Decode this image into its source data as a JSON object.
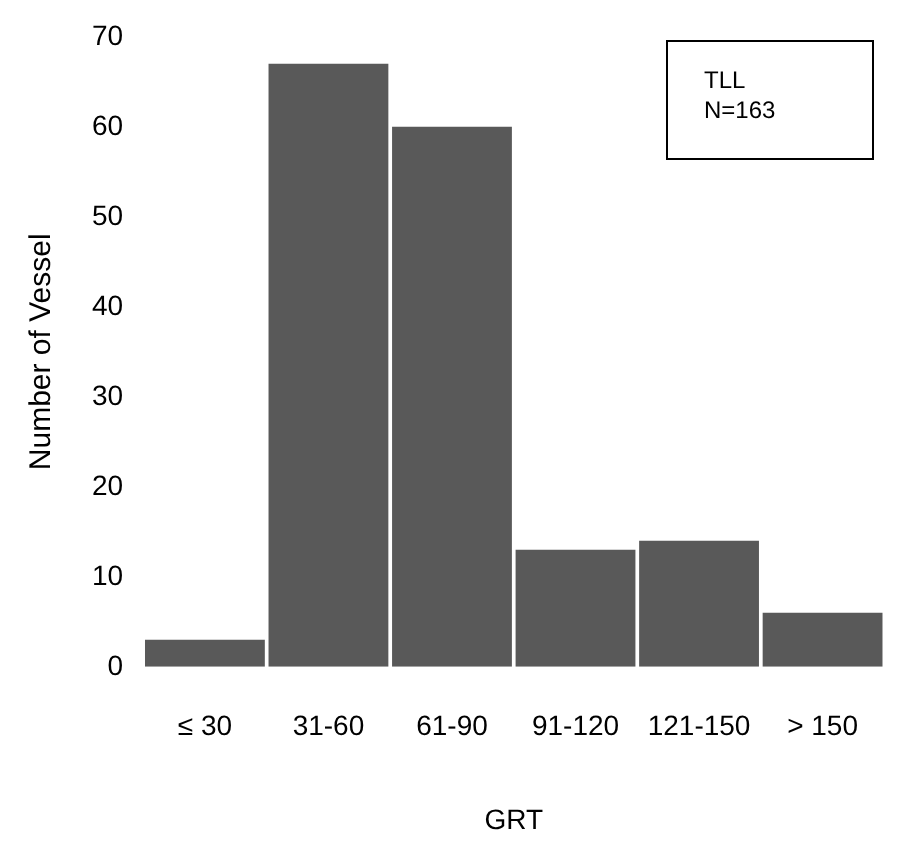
{
  "chart_data": {
    "type": "bar",
    "xlabel": "GRT",
    "ylabel": "Number of Vessel",
    "categories": [
      "≤ 30",
      "31-60",
      "61-90",
      "91-120",
      "121-150",
      "> 150"
    ],
    "values": [
      3,
      67,
      60,
      13,
      14,
      6
    ],
    "color": "#595959",
    "ylim": [
      0,
      70
    ],
    "yticks": [
      0,
      10,
      20,
      30,
      40,
      50,
      60,
      70
    ],
    "grid": false,
    "legend": false,
    "annotations": [
      "TLL",
      "N=163"
    ]
  }
}
